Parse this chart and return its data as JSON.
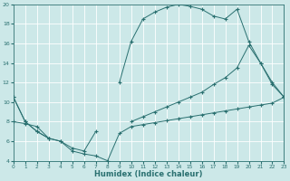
{
  "xlabel": "Humidex (Indice chaleur)",
  "bg_color": "#cce8e8",
  "grid_color": "#ffffff",
  "line_color": "#2a7070",
  "curve_top_x": [
    0,
    1,
    2,
    3,
    9,
    10,
    11,
    12,
    13,
    14,
    15,
    16,
    17,
    18,
    19,
    20,
    21,
    22,
    23
  ],
  "curve_top_y": [
    10.5,
    8.0,
    7.0,
    6.3,
    12.0,
    16.2,
    18.5,
    19.2,
    19.7,
    20.0,
    19.8,
    19.5,
    18.8,
    18.5,
    19.5,
    16.2,
    14.0,
    11.8,
    10.5
  ],
  "curve_mid_x": [
    0,
    1,
    2,
    3,
    4,
    5,
    6,
    7,
    10,
    11,
    12,
    13,
    14,
    15,
    16,
    17,
    18,
    19,
    20,
    21,
    22,
    23
  ],
  "curve_mid_y": [
    10.5,
    8.0,
    7.0,
    6.3,
    6.0,
    5.3,
    5.0,
    7.0,
    8.0,
    8.5,
    9.0,
    9.5,
    10.0,
    10.5,
    11.0,
    11.8,
    12.5,
    13.5,
    15.8,
    14.0,
    12.0,
    10.5
  ],
  "curve_bot_x": [
    0,
    1,
    2,
    3,
    4,
    5,
    6,
    7,
    8,
    9,
    10,
    11,
    12,
    13,
    14,
    15,
    16,
    17,
    18,
    19,
    20,
    21,
    22,
    23
  ],
  "curve_bot_y": [
    8.0,
    7.8,
    7.5,
    6.3,
    6.0,
    5.0,
    4.7,
    4.5,
    4.0,
    6.8,
    7.5,
    7.7,
    7.9,
    8.1,
    8.3,
    8.5,
    8.7,
    8.9,
    9.1,
    9.3,
    9.5,
    9.7,
    9.9,
    10.5
  ],
  "ylim": [
    4,
    20
  ],
  "xlim": [
    0,
    23
  ],
  "yticks": [
    4,
    6,
    8,
    10,
    12,
    14,
    16,
    18,
    20
  ],
  "xticks": [
    0,
    1,
    2,
    3,
    4,
    5,
    6,
    7,
    8,
    9,
    10,
    11,
    12,
    13,
    14,
    15,
    16,
    17,
    18,
    19,
    20,
    21,
    22,
    23
  ]
}
